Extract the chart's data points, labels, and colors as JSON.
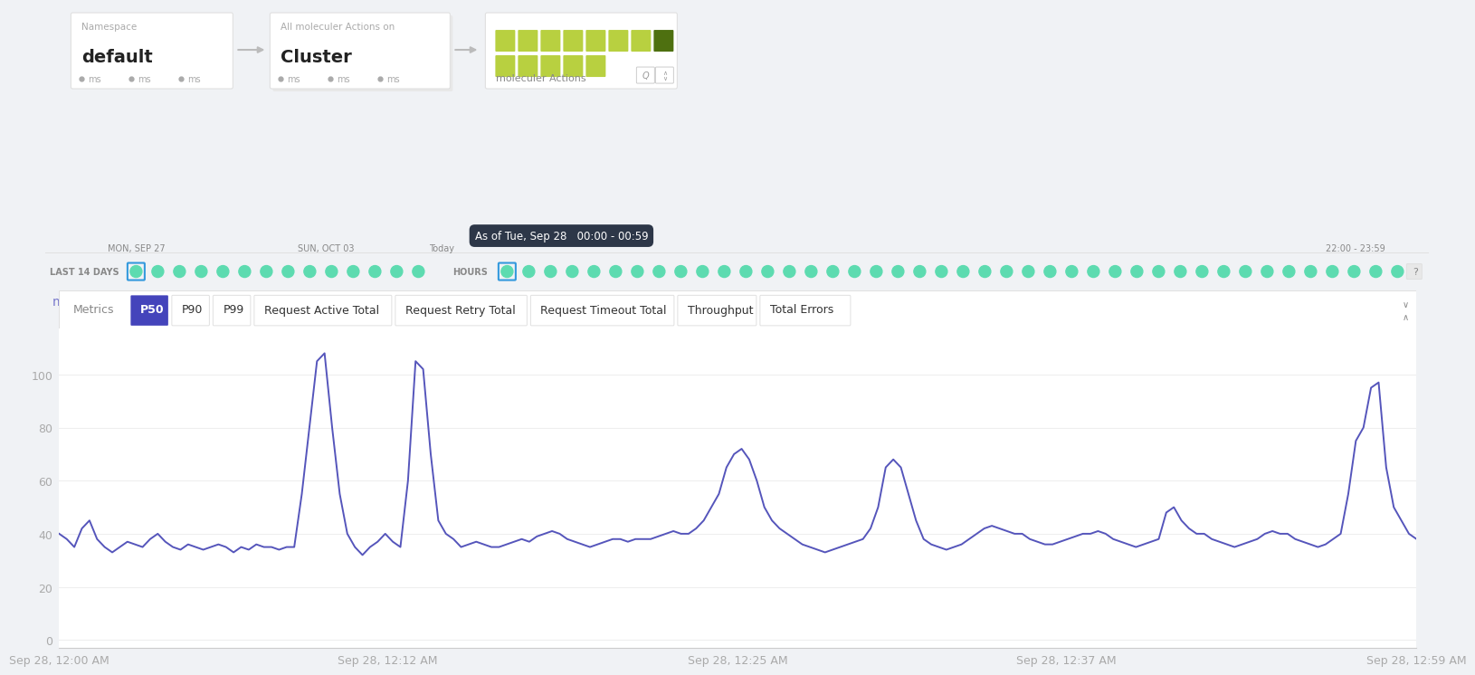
{
  "background_color": "#f0f2f5",
  "chart_bg": "#ffffff",
  "ylabel": "ms",
  "yticks": [
    0,
    20,
    40,
    60,
    80,
    100
  ],
  "xtick_labels": [
    "Sep 28, 12:00 AM",
    "Sep 28, 12:12 AM",
    "Sep 28, 12:25 AM",
    "Sep 28, 12:37 AM",
    "Sep 28, 12:59 AM"
  ],
  "xtick_positions": [
    0,
    145,
    300,
    445,
    600
  ],
  "line_color": "#5555bb",
  "metrics_tabs": [
    "P50",
    "P90",
    "P99",
    "Request Active Total",
    "Request Retry Total",
    "Request Timeout Total",
    "Throughput",
    "Total Errors"
  ],
  "active_tab": "P50",
  "active_tab_color": "#4444bb",
  "namespace_label": "Namespace",
  "namespace_value": "default",
  "cluster_label": "All moleculer Actions on",
  "cluster_value": "Cluster",
  "moleculer_label": "moleculer Actions",
  "timeline_label_left": "LAST 14 DAYS",
  "timeline_label_mid": "HOURS",
  "timeline_dot_color": "#5ddbb0",
  "tooltip_text": "As of Tue, Sep 28   00:00 - 00:59",
  "tooltip_bg": "#2d3748",
  "tooltip_color": "#ffffff",
  "date_labels_left": [
    "MON, SEP 27",
    "SUN, OCT 03",
    "Today"
  ],
  "date_label_right": "22:00 - 23:59",
  "y_data": [
    40,
    38,
    35,
    42,
    45,
    38,
    35,
    33,
    35,
    37,
    36,
    35,
    38,
    40,
    37,
    35,
    34,
    36,
    35,
    34,
    35,
    36,
    35,
    33,
    35,
    34,
    36,
    35,
    35,
    34,
    35,
    35,
    55,
    80,
    105,
    108,
    80,
    55,
    40,
    35,
    32,
    35,
    37,
    40,
    37,
    35,
    60,
    105,
    102,
    70,
    45,
    40,
    38,
    35,
    36,
    37,
    36,
    35,
    35,
    36,
    37,
    38,
    37,
    39,
    40,
    41,
    40,
    38,
    37,
    36,
    35,
    36,
    37,
    38,
    38,
    37,
    38,
    38,
    38,
    39,
    40,
    41,
    40,
    40,
    42,
    45,
    50,
    55,
    65,
    70,
    72,
    68,
    60,
    50,
    45,
    42,
    40,
    38,
    36,
    35,
    34,
    33,
    34,
    35,
    36,
    37,
    38,
    42,
    50,
    65,
    68,
    65,
    55,
    45,
    38,
    36,
    35,
    34,
    35,
    36,
    38,
    40,
    42,
    43,
    42,
    41,
    40,
    40,
    38,
    37,
    36,
    36,
    37,
    38,
    39,
    40,
    40,
    41,
    40,
    38,
    37,
    36,
    35,
    36,
    37,
    38,
    48,
    50,
    45,
    42,
    40,
    40,
    38,
    37,
    36,
    35,
    36,
    37,
    38,
    40,
    41,
    40,
    40,
    38,
    37,
    36,
    35,
    36,
    38,
    40,
    55,
    75,
    80,
    95,
    97,
    65,
    50,
    45,
    40,
    38
  ],
  "grid_color": "#eeeeee",
  "axis_color": "#cccccc",
  "text_color_light": "#aaaaaa",
  "text_color_mid": "#888888",
  "text_color_dark": "#333333",
  "card_border_color": "#e0e0e0",
  "green_sq_colors": [
    "#b8d050",
    "#b8d050",
    "#b8d050",
    "#b8d050",
    "#b8d050",
    "#b8d050",
    "#b8d050",
    "#5a7020",
    "#b8d050",
    "#b8d050",
    "#b8d050",
    "#b8d050",
    "#b8d050"
  ],
  "dot_grid_bg": "#f5f6f8"
}
